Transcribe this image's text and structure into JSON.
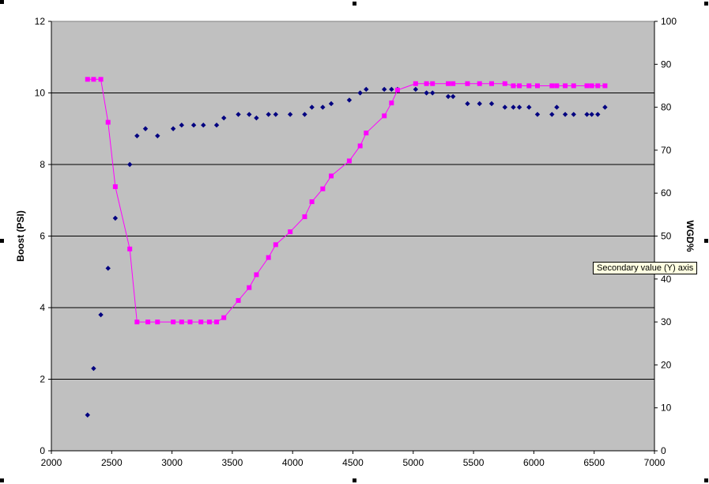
{
  "tooltip": {
    "text": "Secondary value (Y) axis"
  },
  "chart_data": {
    "type": "scatter",
    "title": "",
    "xlabel": "",
    "ylabel": "Boost (PSI)",
    "y2label": "WGD%",
    "xlim": [
      2000,
      7000
    ],
    "ylim": [
      0,
      12
    ],
    "y2lim": [
      0,
      100
    ],
    "x_ticks": [
      2000,
      2500,
      3000,
      3500,
      4000,
      4500,
      5000,
      5500,
      6000,
      6500,
      7000
    ],
    "y_ticks": [
      0,
      2,
      4,
      6,
      8,
      10,
      12
    ],
    "y2_ticks": [
      0,
      10,
      20,
      30,
      40,
      50,
      60,
      70,
      80,
      90,
      100
    ],
    "gridlines": "horizontal major on primary axis",
    "background": "#c0c0c0",
    "series": [
      {
        "axis": "primary",
        "style": "markers",
        "marker": "diamond",
        "color": "#000080",
        "points": [
          [
            2300,
            1.0
          ],
          [
            2350,
            2.3
          ],
          [
            2410,
            3.8
          ],
          [
            2470,
            5.1
          ],
          [
            2530,
            6.5
          ],
          [
            2650,
            8.0
          ],
          [
            2710,
            8.8
          ],
          [
            2780,
            9.0
          ],
          [
            2880,
            8.8
          ],
          [
            3010,
            9.0
          ],
          [
            3080,
            9.1
          ],
          [
            3180,
            9.1
          ],
          [
            3260,
            9.1
          ],
          [
            3370,
            9.1
          ],
          [
            3430,
            9.3
          ],
          [
            3550,
            9.4
          ],
          [
            3640,
            9.4
          ],
          [
            3700,
            9.3
          ],
          [
            3800,
            9.4
          ],
          [
            3860,
            9.4
          ],
          [
            3980,
            9.4
          ],
          [
            4100,
            9.4
          ],
          [
            4160,
            9.6
          ],
          [
            4250,
            9.6
          ],
          [
            4320,
            9.7
          ],
          [
            4470,
            9.8
          ],
          [
            4560,
            10.0
          ],
          [
            4610,
            10.1
          ],
          [
            4760,
            10.1
          ],
          [
            4820,
            10.1
          ],
          [
            4870,
            10.1
          ],
          [
            5020,
            10.1
          ],
          [
            5110,
            10.0
          ],
          [
            5160,
            10.0
          ],
          [
            5290,
            9.9
          ],
          [
            5330,
            9.9
          ],
          [
            5450,
            9.7
          ],
          [
            5550,
            9.7
          ],
          [
            5650,
            9.7
          ],
          [
            5760,
            9.6
          ],
          [
            5830,
            9.6
          ],
          [
            5880,
            9.6
          ],
          [
            5960,
            9.6
          ],
          [
            6030,
            9.4
          ],
          [
            6150,
            9.4
          ],
          [
            6190,
            9.6
          ],
          [
            6260,
            9.4
          ],
          [
            6330,
            9.4
          ],
          [
            6440,
            9.4
          ],
          [
            6480,
            9.4
          ],
          [
            6530,
            9.4
          ],
          [
            6590,
            9.6
          ]
        ]
      },
      {
        "axis": "secondary",
        "style": "line-markers",
        "marker": "square",
        "color": "#ff00ff",
        "points": [
          [
            2300,
            86.5
          ],
          [
            2350,
            86.5
          ],
          [
            2410,
            86.5
          ],
          [
            2470,
            76.5
          ],
          [
            2530,
            61.5
          ],
          [
            2650,
            47.0
          ],
          [
            2710,
            30.0
          ],
          [
            2800,
            30.0
          ],
          [
            2880,
            30.0
          ],
          [
            3010,
            30.0
          ],
          [
            3080,
            30.0
          ],
          [
            3150,
            30.0
          ],
          [
            3240,
            30.0
          ],
          [
            3310,
            30.0
          ],
          [
            3370,
            30.0
          ],
          [
            3430,
            31.0
          ],
          [
            3550,
            35.0
          ],
          [
            3640,
            38.0
          ],
          [
            3700,
            41.0
          ],
          [
            3800,
            45.0
          ],
          [
            3860,
            48.0
          ],
          [
            3980,
            51.0
          ],
          [
            4100,
            54.5
          ],
          [
            4160,
            58.0
          ],
          [
            4250,
            61.0
          ],
          [
            4320,
            64.0
          ],
          [
            4470,
            67.5
          ],
          [
            4560,
            71.0
          ],
          [
            4610,
            74.0
          ],
          [
            4760,
            78.0
          ],
          [
            4820,
            81.0
          ],
          [
            4870,
            84.0
          ],
          [
            5020,
            85.5
          ],
          [
            5110,
            85.5
          ],
          [
            5160,
            85.5
          ],
          [
            5290,
            85.5
          ],
          [
            5330,
            85.5
          ],
          [
            5450,
            85.5
          ],
          [
            5550,
            85.5
          ],
          [
            5650,
            85.5
          ],
          [
            5760,
            85.5
          ],
          [
            5830,
            85.0
          ],
          [
            5880,
            85.0
          ],
          [
            5960,
            85.0
          ],
          [
            6030,
            85.0
          ],
          [
            6150,
            85.0
          ],
          [
            6190,
            85.0
          ],
          [
            6260,
            85.0
          ],
          [
            6330,
            85.0
          ],
          [
            6440,
            85.0
          ],
          [
            6480,
            85.0
          ],
          [
            6530,
            85.0
          ],
          [
            6590,
            85.0
          ]
        ]
      }
    ]
  }
}
